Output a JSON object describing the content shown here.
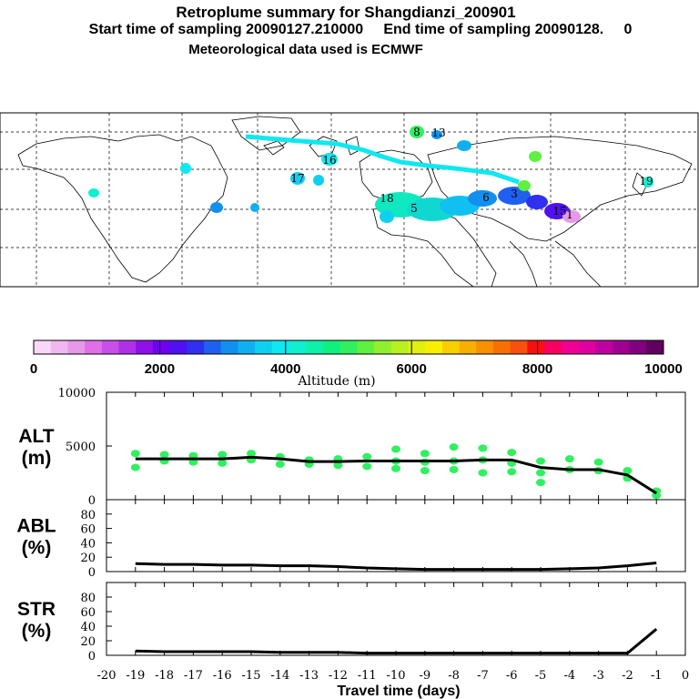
{
  "header": {
    "title": "Retroplume summary for Shangdianzi_200901",
    "sampling": "Start time of sampling 20090127.210000     End time of sampling 20090128.     0",
    "met": "Meteorological data used is ECMWF"
  },
  "map": {
    "plume_labels": [
      "1",
      "3",
      "5",
      "6",
      "8",
      "13",
      "15",
      "16",
      "17",
      "18",
      "19"
    ]
  },
  "colorbar": {
    "label": "Altitude (m)",
    "tick_labels": [
      "0",
      "2000",
      "4000",
      "6000",
      "8000",
      "10000"
    ],
    "colors": [
      "#f8d8f8",
      "#f0b8f0",
      "#e898e8",
      "#e070e8",
      "#c850e8",
      "#b030e8",
      "#9010e8",
      "#7000f0",
      "#5010f0",
      "#3030f0",
      "#2060f0",
      "#1090f0",
      "#10b0f0",
      "#10d0f0",
      "#10e8f0",
      "#10f0d0",
      "#10f0a8",
      "#10f080",
      "#30f060",
      "#60f040",
      "#90f030",
      "#b8f020",
      "#e0f010",
      "#f8f000",
      "#f8d000",
      "#f8b000",
      "#f89000",
      "#f87000",
      "#f85010",
      "#f81010",
      "#f80060",
      "#f00090",
      "#e000a0",
      "#c000a0",
      "#a00090",
      "#800080",
      "#600060"
    ]
  },
  "chart_data": [
    {
      "type": "line",
      "panel": "ALT",
      "ylabel": "ALT\n(m)",
      "ylim": [
        0,
        10000
      ],
      "yticks": [
        0,
        5000,
        10000
      ],
      "x": [
        -19,
        -18,
        -17,
        -16,
        -15,
        -14,
        -13,
        -12,
        -11,
        -10,
        -9,
        -8,
        -7,
        -6,
        -5,
        -4,
        -3,
        -2,
        -1
      ],
      "series": [
        {
          "name": "mean altitude",
          "values": [
            3800,
            3800,
            3800,
            3800,
            3950,
            3800,
            3550,
            3550,
            3600,
            3600,
            3600,
            3600,
            3700,
            3700,
            3000,
            2800,
            2800,
            2300,
            600
          ]
        }
      ],
      "scatter": [
        {
          "x": -19,
          "y": 4300
        },
        {
          "x": -19,
          "y": 3000
        },
        {
          "x": -18,
          "y": 4200
        },
        {
          "x": -18,
          "y": 3600
        },
        {
          "x": -17,
          "y": 4100
        },
        {
          "x": -17,
          "y": 3500
        },
        {
          "x": -16,
          "y": 4200
        },
        {
          "x": -16,
          "y": 3400
        },
        {
          "x": -15,
          "y": 4300
        },
        {
          "x": -15,
          "y": 3700
        },
        {
          "x": -14,
          "y": 4000
        },
        {
          "x": -14,
          "y": 3300
        },
        {
          "x": -13,
          "y": 3700
        },
        {
          "x": -13,
          "y": 3300
        },
        {
          "x": -12,
          "y": 3800
        },
        {
          "x": -12,
          "y": 3200
        },
        {
          "x": -11,
          "y": 4000
        },
        {
          "x": -11,
          "y": 3100
        },
        {
          "x": -10,
          "y": 4700
        },
        {
          "x": -10,
          "y": 3600
        },
        {
          "x": -10,
          "y": 2900
        },
        {
          "x": -9,
          "y": 4300
        },
        {
          "x": -9,
          "y": 3500
        },
        {
          "x": -9,
          "y": 2700
        },
        {
          "x": -8,
          "y": 4900
        },
        {
          "x": -8,
          "y": 3600
        },
        {
          "x": -8,
          "y": 2800
        },
        {
          "x": -7,
          "y": 4800
        },
        {
          "x": -7,
          "y": 3700
        },
        {
          "x": -7,
          "y": 2500
        },
        {
          "x": -6,
          "y": 4400
        },
        {
          "x": -6,
          "y": 3400
        },
        {
          "x": -6,
          "y": 2600
        },
        {
          "x": -5,
          "y": 3600
        },
        {
          "x": -5,
          "y": 2500
        },
        {
          "x": -5,
          "y": 1600
        },
        {
          "x": -4,
          "y": 3800
        },
        {
          "x": -4,
          "y": 2800
        },
        {
          "x": -3,
          "y": 3500
        },
        {
          "x": -3,
          "y": 2700
        },
        {
          "x": -2,
          "y": 2700
        },
        {
          "x": -2,
          "y": 2000
        },
        {
          "x": -1,
          "y": 800
        },
        {
          "x": -1,
          "y": 400
        }
      ],
      "xlim": [
        -20,
        0
      ]
    },
    {
      "type": "line",
      "panel": "ABL",
      "ylabel": "ABL\n(%)",
      "ylim": [
        0,
        100
      ],
      "yticks": [
        0,
        20,
        40,
        60,
        80
      ],
      "x": [
        -19,
        -18,
        -17,
        -16,
        -15,
        -14,
        -13,
        -12,
        -11,
        -10,
        -9,
        -8,
        -7,
        -6,
        -5,
        -4,
        -3,
        -2,
        -1
      ],
      "series": [
        {
          "name": "fraction in ABL",
          "values": [
            11,
            10,
            10,
            9,
            9,
            8,
            8,
            7,
            5,
            4,
            3,
            3,
            3,
            3,
            3,
            4,
            5,
            8,
            12
          ]
        }
      ],
      "xlim": [
        -20,
        0
      ]
    },
    {
      "type": "line",
      "panel": "STR",
      "ylabel": "STR\n(%)",
      "ylim": [
        0,
        100
      ],
      "yticks": [
        0,
        20,
        40,
        60,
        80
      ],
      "x": [
        -19,
        -18,
        -17,
        -16,
        -15,
        -14,
        -13,
        -12,
        -11,
        -10,
        -9,
        -8,
        -7,
        -6,
        -5,
        -4,
        -3,
        -2,
        -1
      ],
      "series": [
        {
          "name": "fraction in stratosphere",
          "values": [
            6,
            5,
            5,
            5,
            5,
            4,
            4,
            4,
            3,
            3,
            3,
            3,
            3,
            3,
            3,
            3,
            3,
            3,
            36
          ]
        }
      ],
      "xtick_labels": [
        "-20",
        "-19",
        "-18",
        "-17",
        "-16",
        "-15",
        "-14",
        "-13",
        "-12",
        "-11",
        "-10",
        "-9",
        "-8",
        "-7",
        "-6",
        "-5",
        "-4",
        "-3",
        "-2",
        "-1",
        "0"
      ],
      "xlabel": "Travel time (days)",
      "xlim": [
        -20,
        0
      ]
    }
  ]
}
